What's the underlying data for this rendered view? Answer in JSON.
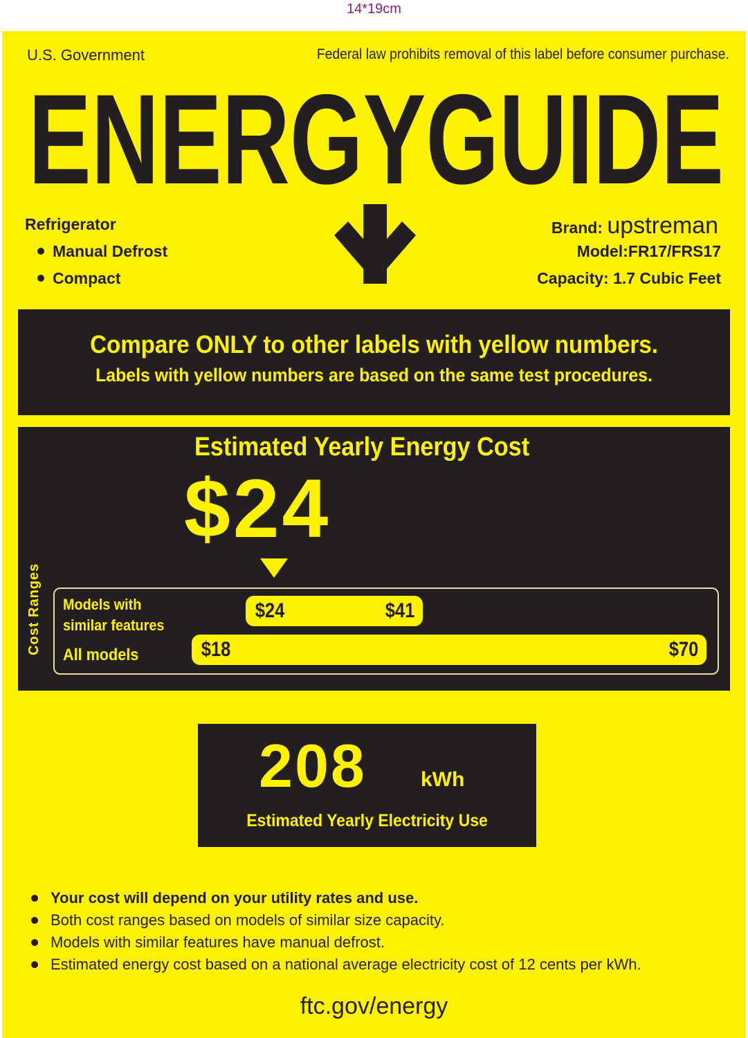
{
  "size_note": "14*19cm",
  "header": {
    "left": "U.S. Government",
    "right": "Federal law prohibits removal of this label before consumer purchase.",
    "title": "ENERGYGUIDE"
  },
  "appliance": {
    "type": "Refrigerator",
    "features": [
      "Manual Defrost",
      "Compact"
    ]
  },
  "product": {
    "brand_label": "Brand:",
    "brand": "upstreman",
    "model": "Model:FR17/FRS17",
    "capacity": "Capacity: 1.7 Cubic Feet"
  },
  "compare": {
    "line1": "Compare ONLY to other labels with yellow numbers.",
    "line2": "Labels with yellow numbers are based on the same test procedures."
  },
  "cost": {
    "title": "Estimated Yearly Energy Cost",
    "value": "$24",
    "ranges_label": "Cost Ranges",
    "similar_label_1": "Models with",
    "similar_label_2": "similar features",
    "similar_min": "$24",
    "similar_max": "$41",
    "all_label": "All models",
    "all_min": "$18",
    "all_max": "$70"
  },
  "electricity": {
    "value": "208",
    "unit": "kWh",
    "label": "Estimated Yearly Electricity Use"
  },
  "notes": [
    "Your cost will depend on your utility rates and use.",
    "Both cost ranges based on models of similar size capacity.",
    "Models with similar features have manual defrost.",
    "Estimated energy cost based on a national average electricity cost of 12 cents per kWh."
  ],
  "footer": "ftc.gov/energy",
  "colors": {
    "label_yellow": "#fff200",
    "dark": "#231f20",
    "size_note": "#8b1f6e"
  }
}
